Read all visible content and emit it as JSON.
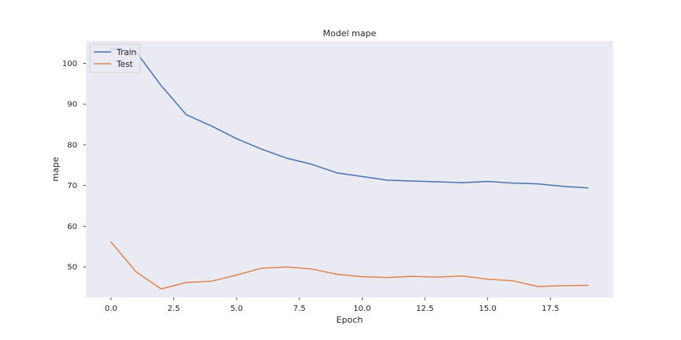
{
  "chart_data": {
    "type": "line",
    "title": "Model mape",
    "xlabel": "Epoch",
    "ylabel": "mape",
    "x": [
      0,
      1,
      2,
      3,
      4,
      5,
      6,
      7,
      8,
      9,
      10,
      11,
      12,
      13,
      14,
      15,
      16,
      17,
      18,
      19
    ],
    "xlim": [
      -1.0,
      20.0
    ],
    "ylim": [
      42.5,
      105.5
    ],
    "xticks": [
      0.0,
      2.5,
      5.0,
      7.5,
      10.0,
      12.5,
      15.0,
      17.5
    ],
    "xtick_labels": [
      "0.0",
      "2.5",
      "5.0",
      "7.5",
      "10.0",
      "12.5",
      "15.0",
      "17.5"
    ],
    "yticks": [
      50,
      60,
      70,
      80,
      90,
      100
    ],
    "ytick_labels": [
      "50",
      "60",
      "70",
      "80",
      "90",
      "100"
    ],
    "grid": false,
    "legend": {
      "position": "top-left"
    },
    "series": [
      {
        "name": "Train",
        "color": "#4c72b0",
        "values": [
          103.5,
          102.8,
          94.5,
          87.4,
          84.6,
          81.5,
          78.9,
          76.7,
          75.2,
          73.1,
          72.2,
          71.3,
          71.1,
          70.9,
          70.7,
          71.0,
          70.6,
          70.4,
          69.8,
          69.4
        ]
      },
      {
        "name": "Test",
        "color": "#dd8452",
        "values": [
          56.1,
          48.8,
          44.6,
          46.2,
          46.5,
          48.0,
          49.7,
          50.0,
          49.5,
          48.2,
          47.6,
          47.4,
          47.7,
          47.5,
          47.8,
          47.0,
          46.6,
          45.2,
          45.4,
          45.5
        ]
      }
    ]
  }
}
